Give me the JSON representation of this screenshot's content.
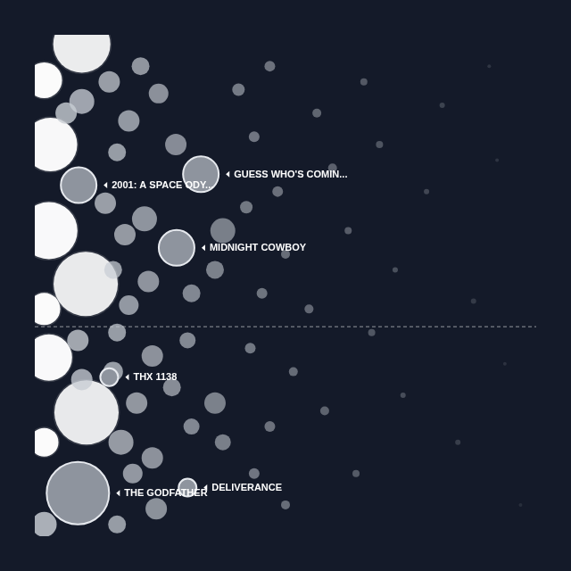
{
  "chart_data": {
    "type": "bubble",
    "xlim": [
      0,
      640
    ],
    "ylim": [
      640,
      0
    ],
    "tick_labels": false,
    "grid": false,
    "reference_y": 372,
    "films": {
      "labels": [
        "2001: A SPACE ODY...",
        "GUESS WHO'S COMIN...",
        "MIDNIGHT COWBOY",
        "THX 1138",
        "THE GODFATHER",
        "DELIVERANCE"
      ],
      "x": [
        56,
        212,
        181,
        95,
        55,
        195
      ],
      "y": [
        192,
        178,
        272,
        437,
        585,
        578
      ],
      "r": [
        20,
        20,
        20,
        10,
        35,
        10
      ]
    },
    "dots": {
      "x": [
        60,
        12,
        20,
        18,
        65,
        12,
        18,
        66,
        12,
        12,
        40,
        95,
        60,
        135,
        120,
        158,
        180,
        105,
        90,
        140,
        115,
        100,
        145,
        120,
        55,
        105,
        150,
        100,
        60,
        130,
        175,
        110,
        150,
        125,
        155,
        105,
        240,
        230,
        200,
        195,
        230,
        240,
        200,
        260,
        280,
        300,
        270,
        310,
        290,
        320,
        275,
        330,
        300,
        280,
        320,
        360,
        380,
        350,
        400,
        370,
        410,
        420,
        440,
        430,
        460,
        470,
        500,
        520,
        540,
        560,
        590,
        600,
        620,
        580
      ],
      "y": [
        12,
        58,
        140,
        250,
        318,
        350,
        412,
        482,
        520,
        625,
        100,
        60,
        85,
        40,
        110,
        75,
        140,
        150,
        215,
        235,
        255,
        300,
        315,
        345,
        390,
        380,
        410,
        430,
        440,
        470,
        450,
        520,
        540,
        560,
        605,
        625,
        250,
        300,
        330,
        390,
        470,
        520,
        500,
        70,
        130,
        40,
        220,
        200,
        330,
        280,
        400,
        430,
        500,
        560,
        600,
        100,
        170,
        350,
        250,
        480,
        560,
        60,
        140,
        380,
        300,
        460,
        200,
        90,
        520,
        340,
        160,
        420,
        600,
        40
      ],
      "r": [
        32,
        20,
        30,
        32,
        36,
        18,
        26,
        36,
        16,
        14,
        12,
        12,
        14,
        10,
        12,
        11,
        12,
        10,
        12,
        14,
        12,
        10,
        12,
        11,
        12,
        10,
        12,
        11,
        12,
        12,
        10,
        14,
        12,
        11,
        12,
        10,
        14,
        10,
        10,
        9,
        12,
        9,
        9,
        7,
        6,
        6,
        7,
        6,
        6,
        5,
        6,
        5,
        6,
        6,
        5,
        5,
        5,
        5,
        4,
        5,
        4,
        4,
        4,
        4,
        3,
        3,
        3,
        3,
        3,
        3,
        2,
        2,
        2,
        2
      ]
    }
  }
}
